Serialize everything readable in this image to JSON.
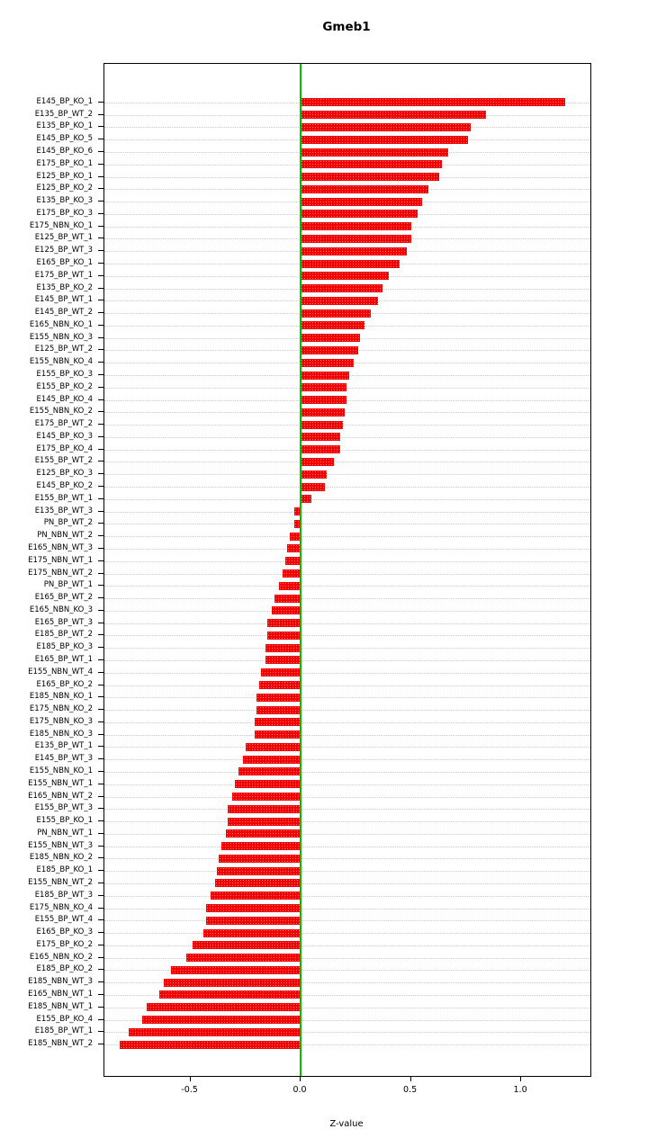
{
  "chart_data": {
    "type": "bar",
    "orientation": "horizontal",
    "title": "Gmeb1",
    "xlabel": "Z-value",
    "bar_color": "#f50000",
    "zero_line_color": "#00c000",
    "grid": "dotted-horizontal",
    "legend": "none",
    "xlim": [
      -0.89,
      1.314
    ],
    "xticks": [
      -0.5,
      0.0,
      0.5,
      1.0
    ],
    "xtick_labels": [
      "-0.5",
      "0.0",
      "0.5",
      "1.0"
    ],
    "categories": [
      "E145_BP_KO_1",
      "E135_BP_WT_2",
      "E135_BP_KO_1",
      "E145_BP_KO_5",
      "E145_BP_KO_6",
      "E175_BP_KO_1",
      "E125_BP_KO_1",
      "E125_BP_KO_2",
      "E135_BP_KO_3",
      "E175_BP_KO_3",
      "E175_NBN_KO_1",
      "E125_BP_WT_1",
      "E125_BP_WT_3",
      "E165_BP_KO_1",
      "E175_BP_WT_1",
      "E135_BP_KO_2",
      "E145_BP_WT_1",
      "E145_BP_WT_2",
      "E165_NBN_KO_1",
      "E155_NBN_KO_3",
      "E125_BP_WT_2",
      "E155_NBN_KO_4",
      "E155_BP_KO_3",
      "E155_BP_KO_2",
      "E145_BP_KO_4",
      "E155_NBN_KO_2",
      "E175_BP_WT_2",
      "E145_BP_KO_3",
      "E175_BP_KO_4",
      "E155_BP_WT_2",
      "E125_BP_KO_3",
      "E145_BP_KO_2",
      "E155_BP_WT_1",
      "E135_BP_WT_3",
      "PN_BP_WT_2",
      "PN_NBN_WT_2",
      "E165_NBN_WT_3",
      "E175_NBN_WT_1",
      "E175_NBN_WT_2",
      "PN_BP_WT_1",
      "E165_BP_WT_2",
      "E165_NBN_KO_3",
      "E165_BP_WT_3",
      "E185_BP_WT_2",
      "E185_BP_KO_3",
      "E165_BP_WT_1",
      "E155_NBN_WT_4",
      "E165_BP_KO_2",
      "E185_NBN_KO_1",
      "E175_NBN_KO_2",
      "E175_NBN_KO_3",
      "E185_NBN_KO_3",
      "E135_BP_WT_1",
      "E145_BP_WT_3",
      "E155_NBN_KO_1",
      "E155_NBN_WT_1",
      "E165_NBN_WT_2",
      "E155_BP_WT_3",
      "E155_BP_KO_1",
      "PN_NBN_WT_1",
      "E155_NBN_WT_3",
      "E185_NBN_KO_2",
      "E185_BP_KO_1",
      "E155_NBN_WT_2",
      "E185_BP_WT_3",
      "E175_NBN_KO_4",
      "E155_BP_WT_4",
      "E165_BP_KO_3",
      "E175_BP_KO_2",
      "E165_NBN_KO_2",
      "E185_BP_KO_2",
      "E185_NBN_WT_3",
      "E165_NBN_WT_1",
      "E185_NBN_WT_1",
      "E155_BP_KO_4",
      "E185_BP_WT_1",
      "E185_NBN_WT_2"
    ],
    "values": [
      1.2,
      0.84,
      0.77,
      0.76,
      0.67,
      0.64,
      0.63,
      0.58,
      0.55,
      0.53,
      0.5,
      0.5,
      0.48,
      0.45,
      0.4,
      0.37,
      0.35,
      0.32,
      0.29,
      0.27,
      0.26,
      0.24,
      0.22,
      0.21,
      0.21,
      0.2,
      0.19,
      0.18,
      0.18,
      0.15,
      0.12,
      0.11,
      0.05,
      -0.03,
      -0.03,
      -0.05,
      -0.06,
      -0.07,
      -0.08,
      -0.1,
      -0.12,
      -0.13,
      -0.15,
      -0.15,
      -0.16,
      -0.16,
      -0.18,
      -0.19,
      -0.2,
      -0.2,
      -0.21,
      -0.21,
      -0.25,
      -0.26,
      -0.28,
      -0.3,
      -0.31,
      -0.33,
      -0.33,
      -0.34,
      -0.36,
      -0.37,
      -0.38,
      -0.39,
      -0.41,
      -0.43,
      -0.43,
      -0.44,
      -0.49,
      -0.52,
      -0.59,
      -0.62,
      -0.64,
      -0.7,
      -0.72,
      -0.78,
      -0.82
    ]
  }
}
